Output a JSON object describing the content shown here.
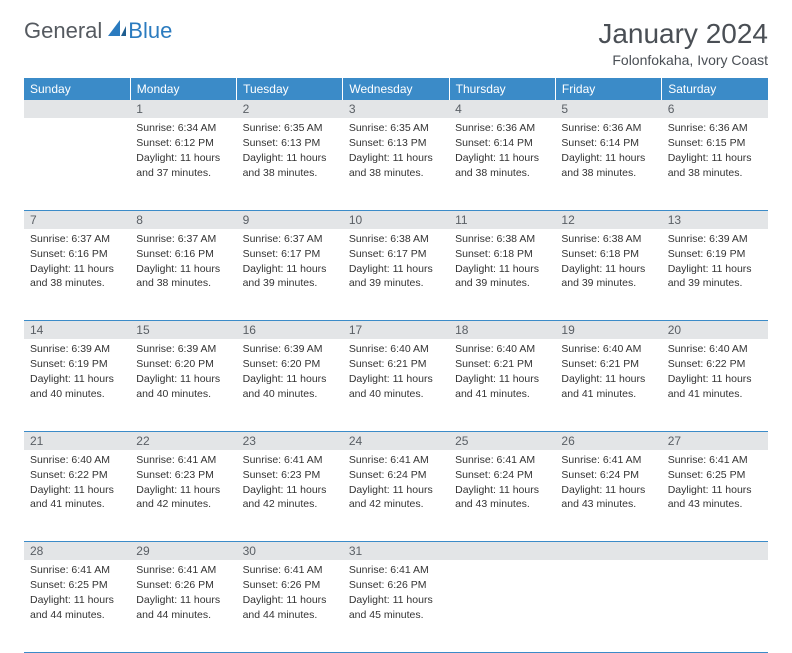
{
  "logo": {
    "text1": "General",
    "text2": "Blue"
  },
  "title": "January 2024",
  "location": "Folonfokaha, Ivory Coast",
  "colors": {
    "header_bg": "#3b8bc8",
    "header_text": "#ffffff",
    "daynum_bg": "#e3e5e7",
    "daynum_text": "#5a5f65",
    "body_text": "#333333",
    "rule": "#3b8bc8"
  },
  "fonts": {
    "title_size": 28,
    "location_size": 14,
    "dayname_size": 12,
    "daynum_size": 12,
    "cell_size": 10.5
  },
  "day_names": [
    "Sunday",
    "Monday",
    "Tuesday",
    "Wednesday",
    "Thursday",
    "Friday",
    "Saturday"
  ],
  "weeks": [
    {
      "nums": [
        "",
        "1",
        "2",
        "3",
        "4",
        "5",
        "6"
      ],
      "cells": [
        null,
        {
          "sunrise": "6:34 AM",
          "sunset": "6:12 PM",
          "daylight": "11 hours and 37 minutes."
        },
        {
          "sunrise": "6:35 AM",
          "sunset": "6:13 PM",
          "daylight": "11 hours and 38 minutes."
        },
        {
          "sunrise": "6:35 AM",
          "sunset": "6:13 PM",
          "daylight": "11 hours and 38 minutes."
        },
        {
          "sunrise": "6:36 AM",
          "sunset": "6:14 PM",
          "daylight": "11 hours and 38 minutes."
        },
        {
          "sunrise": "6:36 AM",
          "sunset": "6:14 PM",
          "daylight": "11 hours and 38 minutes."
        },
        {
          "sunrise": "6:36 AM",
          "sunset": "6:15 PM",
          "daylight": "11 hours and 38 minutes."
        }
      ]
    },
    {
      "nums": [
        "7",
        "8",
        "9",
        "10",
        "11",
        "12",
        "13"
      ],
      "cells": [
        {
          "sunrise": "6:37 AM",
          "sunset": "6:16 PM",
          "daylight": "11 hours and 38 minutes."
        },
        {
          "sunrise": "6:37 AM",
          "sunset": "6:16 PM",
          "daylight": "11 hours and 38 minutes."
        },
        {
          "sunrise": "6:37 AM",
          "sunset": "6:17 PM",
          "daylight": "11 hours and 39 minutes."
        },
        {
          "sunrise": "6:38 AM",
          "sunset": "6:17 PM",
          "daylight": "11 hours and 39 minutes."
        },
        {
          "sunrise": "6:38 AM",
          "sunset": "6:18 PM",
          "daylight": "11 hours and 39 minutes."
        },
        {
          "sunrise": "6:38 AM",
          "sunset": "6:18 PM",
          "daylight": "11 hours and 39 minutes."
        },
        {
          "sunrise": "6:39 AM",
          "sunset": "6:19 PM",
          "daylight": "11 hours and 39 minutes."
        }
      ]
    },
    {
      "nums": [
        "14",
        "15",
        "16",
        "17",
        "18",
        "19",
        "20"
      ],
      "cells": [
        {
          "sunrise": "6:39 AM",
          "sunset": "6:19 PM",
          "daylight": "11 hours and 40 minutes."
        },
        {
          "sunrise": "6:39 AM",
          "sunset": "6:20 PM",
          "daylight": "11 hours and 40 minutes."
        },
        {
          "sunrise": "6:39 AM",
          "sunset": "6:20 PM",
          "daylight": "11 hours and 40 minutes."
        },
        {
          "sunrise": "6:40 AM",
          "sunset": "6:21 PM",
          "daylight": "11 hours and 40 minutes."
        },
        {
          "sunrise": "6:40 AM",
          "sunset": "6:21 PM",
          "daylight": "11 hours and 41 minutes."
        },
        {
          "sunrise": "6:40 AM",
          "sunset": "6:21 PM",
          "daylight": "11 hours and 41 minutes."
        },
        {
          "sunrise": "6:40 AM",
          "sunset": "6:22 PM",
          "daylight": "11 hours and 41 minutes."
        }
      ]
    },
    {
      "nums": [
        "21",
        "22",
        "23",
        "24",
        "25",
        "26",
        "27"
      ],
      "cells": [
        {
          "sunrise": "6:40 AM",
          "sunset": "6:22 PM",
          "daylight": "11 hours and 41 minutes."
        },
        {
          "sunrise": "6:41 AM",
          "sunset": "6:23 PM",
          "daylight": "11 hours and 42 minutes."
        },
        {
          "sunrise": "6:41 AM",
          "sunset": "6:23 PM",
          "daylight": "11 hours and 42 minutes."
        },
        {
          "sunrise": "6:41 AM",
          "sunset": "6:24 PM",
          "daylight": "11 hours and 42 minutes."
        },
        {
          "sunrise": "6:41 AM",
          "sunset": "6:24 PM",
          "daylight": "11 hours and 43 minutes."
        },
        {
          "sunrise": "6:41 AM",
          "sunset": "6:24 PM",
          "daylight": "11 hours and 43 minutes."
        },
        {
          "sunrise": "6:41 AM",
          "sunset": "6:25 PM",
          "daylight": "11 hours and 43 minutes."
        }
      ]
    },
    {
      "nums": [
        "28",
        "29",
        "30",
        "31",
        "",
        "",
        ""
      ],
      "cells": [
        {
          "sunrise": "6:41 AM",
          "sunset": "6:25 PM",
          "daylight": "11 hours and 44 minutes."
        },
        {
          "sunrise": "6:41 AM",
          "sunset": "6:26 PM",
          "daylight": "11 hours and 44 minutes."
        },
        {
          "sunrise": "6:41 AM",
          "sunset": "6:26 PM",
          "daylight": "11 hours and 44 minutes."
        },
        {
          "sunrise": "6:41 AM",
          "sunset": "6:26 PM",
          "daylight": "11 hours and 45 minutes."
        },
        null,
        null,
        null
      ]
    }
  ],
  "labels": {
    "sunrise_prefix": "Sunrise: ",
    "sunset_prefix": "Sunset: ",
    "daylight_prefix": "Daylight: "
  }
}
